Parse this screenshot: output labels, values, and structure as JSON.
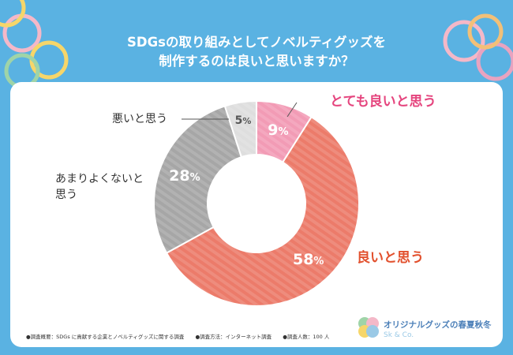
{
  "colors": {
    "background": "#5ab2e2",
    "panel": "#ffffff",
    "very_good": "#f29bb5",
    "good": "#ec7b6a",
    "not_very_good": "#a6a6a6",
    "bad": "#dedede",
    "very_good_label": "#e5457e",
    "good_label": "#e2512e"
  },
  "title_lines": [
    "SDGsの取り組みとしてノベルティグッズを",
    "制作するのは良いと思いますか？"
  ],
  "chart_data": {
    "type": "pie",
    "donut": true,
    "title": "SDGsの取り組みとしてノベルティグッズを制作するのは良いと思いますか？",
    "categories": [
      "とても良いと思う",
      "良いと思う",
      "あまりよくないと思う",
      "悪いと思う"
    ],
    "values": [
      9,
      58,
      28,
      5
    ],
    "value_labels": [
      "9",
      "58",
      "28",
      "5"
    ],
    "unit": "%",
    "slice_colors": [
      "#f29bb5",
      "#ec7b6a",
      "#a6a6a6",
      "#dedede"
    ],
    "start_angle": "12 o'clock",
    "direction": "clockwise",
    "legend": "none (direct labels)"
  },
  "labels": {
    "very_good": "とても良いと思う",
    "good": "良いと思う",
    "not_very_good_line1": "あまりよくないと",
    "not_very_good_line2": "思う",
    "bad": "悪いと思う"
  },
  "footer": {
    "item1": "●調査概要：SDGs に貢献する企業とノベルティグッズに関する調査",
    "item2": "●調査方法：インターネット調査",
    "item3": "●調査人数：100 人"
  },
  "logo": {
    "line1": "オリジナルグッズの春夏秋冬",
    "line2": "Sk & Co."
  }
}
